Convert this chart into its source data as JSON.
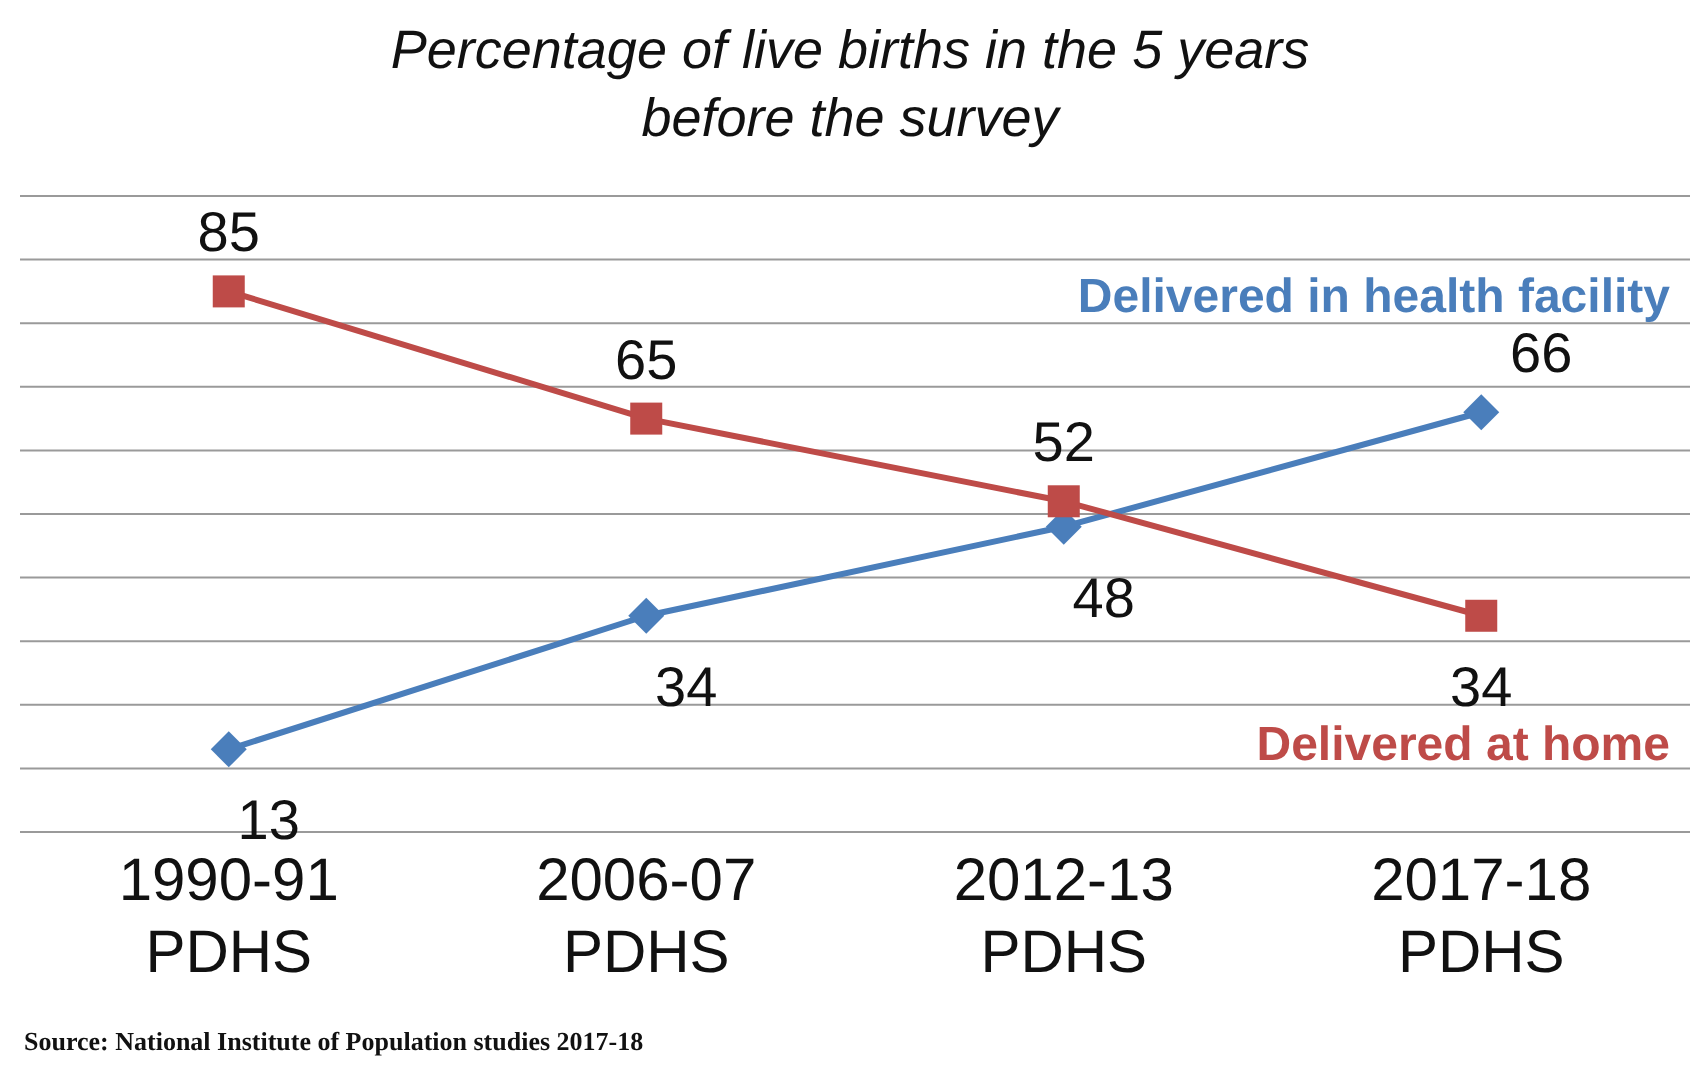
{
  "chart_data": {
    "type": "line",
    "title": "Percentage of live births in the 5 years before the survey",
    "categories": [
      "1990-91 PDHS",
      "2006-07 PDHS",
      "2012-13 PDHS",
      "2017-18 PDHS"
    ],
    "series": [
      {
        "name": "Delivered in health facility",
        "color": "#4a7ebb",
        "values": [
          13,
          34,
          48,
          66
        ],
        "marker": "diamond"
      },
      {
        "name": "Delivered at home",
        "color": "#be4b48",
        "values": [
          85,
          65,
          52,
          34
        ],
        "marker": "square"
      }
    ],
    "ylim": [
      0,
      100
    ],
    "yticks": [
      {
        "value": 0,
        "label": null
      },
      {
        "value": 10,
        "label": null
      },
      {
        "value": 20,
        "label": null
      },
      {
        "value": 30,
        "label": null
      },
      {
        "value": 40,
        "label": null
      },
      {
        "value": 50,
        "label": null
      },
      {
        "value": 60,
        "label": null
      },
      {
        "value": 70,
        "label": null
      },
      {
        "value": 80,
        "label": null
      },
      {
        "value": 90,
        "label": null
      },
      {
        "value": 100,
        "label": null
      }
    ],
    "tick_labels": "x",
    "grid": "y",
    "legend": false,
    "data_labels": true,
    "annotations": [
      "Source: National Institute of Population studies 2017-18"
    ]
  }
}
